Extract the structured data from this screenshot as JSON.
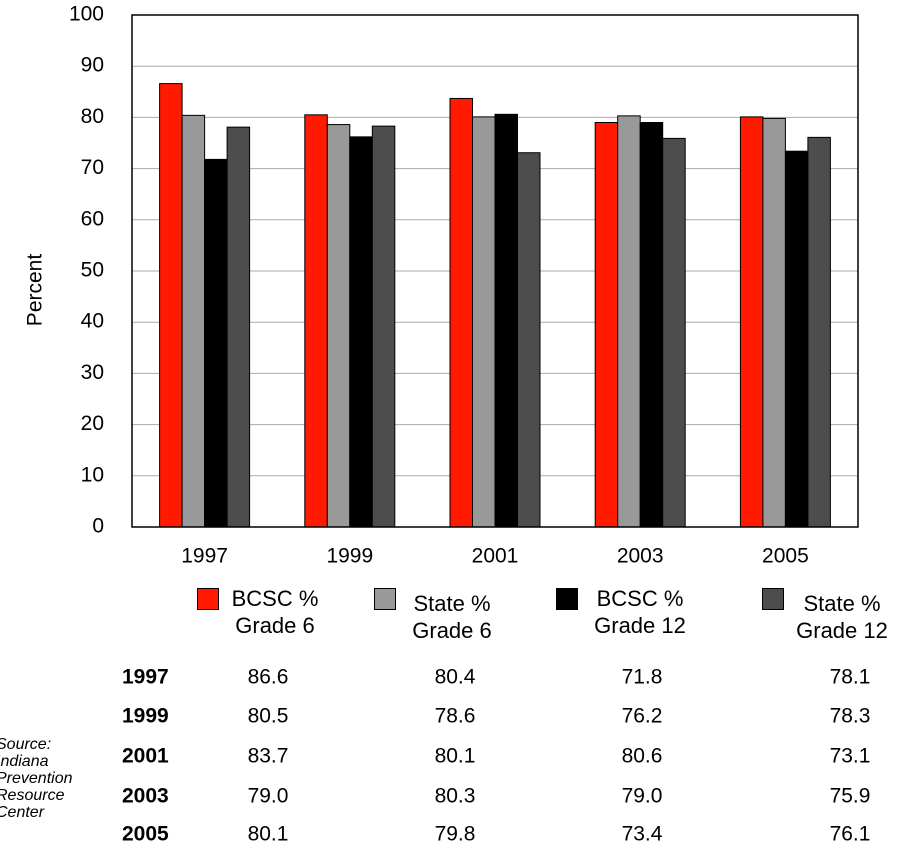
{
  "chart_data": {
    "type": "bar",
    "y_label": "Percent",
    "categories": [
      "1997",
      "1999",
      "2001",
      "2003",
      "2005"
    ],
    "series": [
      {
        "name": "BCSC % Grade 6",
        "color": "#ff1a00",
        "values": [
          86.6,
          80.5,
          83.7,
          79.0,
          80.1
        ],
        "value_labels": [
          "86.6",
          "80.5",
          "83.7",
          "79.0",
          "80.1"
        ]
      },
      {
        "name": "State % Grade 6",
        "color": "#999999",
        "values": [
          80.4,
          78.6,
          80.1,
          80.3,
          79.8
        ],
        "value_labels": [
          "80.4",
          "78.6",
          "80.1",
          "80.3",
          "79.8"
        ]
      },
      {
        "name": "BCSC % Grade 12",
        "color": "#000000",
        "values": [
          71.8,
          76.2,
          80.6,
          79.0,
          73.4
        ],
        "value_labels": [
          "71.8",
          "76.2",
          "80.6",
          "79.0",
          "73.4"
        ]
      },
      {
        "name": "State % Grade 12",
        "color": "#4d4d4d",
        "values": [
          78.1,
          78.3,
          73.1,
          75.9,
          76.1
        ],
        "value_labels": [
          "78.1",
          "78.3",
          "73.1",
          "75.9",
          "76.1"
        ]
      }
    ],
    "ylim": [
      0,
      100
    ],
    "yticks": [
      0,
      10,
      20,
      30,
      40,
      50,
      60,
      70,
      80,
      90,
      100
    ],
    "grid": true,
    "source": "Source: Indiana Prevention Resource Center"
  }
}
